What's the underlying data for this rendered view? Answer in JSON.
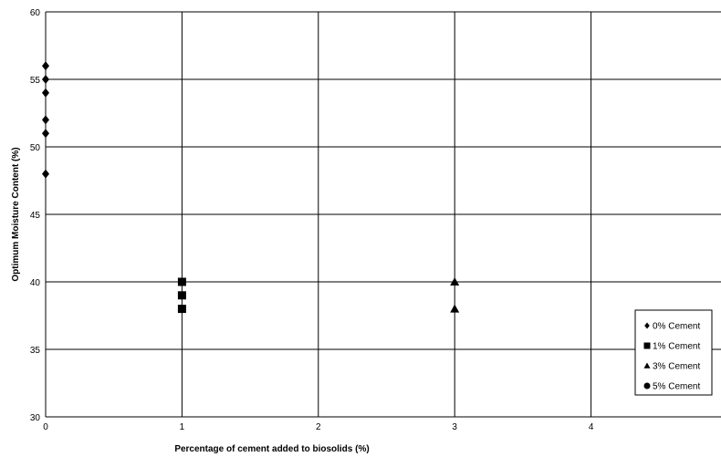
{
  "chart_data": {
    "type": "scatter",
    "title": "",
    "xlabel": "Percentage of cement added to biosolids (%)",
    "ylabel": "Optimum Moisture Content (%)",
    "xlim": [
      0,
      5
    ],
    "ylim": [
      30,
      60
    ],
    "x_ticks": [
      "0",
      "1",
      "2",
      "3",
      "4"
    ],
    "y_ticks": [
      "30",
      "35",
      "40",
      "45",
      "50",
      "55",
      "60"
    ],
    "grid": true,
    "legend_position": "right",
    "series": [
      {
        "name": "0% Cement",
        "marker": "diamond",
        "x": [
          0,
          0,
          0,
          0,
          0,
          0
        ],
        "y": [
          56,
          55,
          54,
          52,
          51,
          48
        ]
      },
      {
        "name": "1% Cement",
        "marker": "square",
        "x": [
          1,
          1,
          1
        ],
        "y": [
          40,
          39,
          38
        ]
      },
      {
        "name": "3% Cement",
        "marker": "triangle",
        "x": [
          3,
          3
        ],
        "y": [
          40,
          38
        ]
      },
      {
        "name": "5% Cement",
        "marker": "circle",
        "x": [],
        "y": []
      }
    ],
    "colors": {
      "marker": "#000000",
      "grid": "#000000",
      "background": "#ffffff"
    }
  }
}
